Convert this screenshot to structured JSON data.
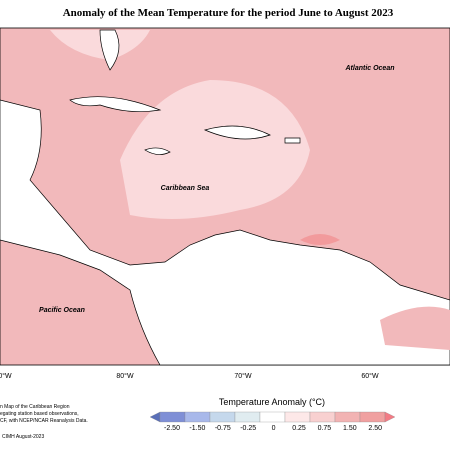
{
  "title": "Anomaly of the Mean Temperature for the period June to August 2023",
  "map": {
    "labels": [
      "Atlantic Ocean",
      "Caribbean Sea",
      "Pacific Ocean"
    ],
    "longitudes": [
      "0°W",
      "80°W",
      "70°W",
      "60°W"
    ]
  },
  "legend": {
    "title": "Temperature Anomaly (°C)",
    "ticks": [
      "-2.50",
      "-1.50",
      "-0.75",
      "-0.25",
      "0",
      "0.25",
      "0.75",
      "1.50",
      "2.50"
    ]
  },
  "footnote": {
    "lines": [
      "n Map of the Caribbean Region",
      "egating station based observations,",
      "CF, with NCEP/NCAR Reanalysis Data."
    ],
    "credit": "CIMH August-2023"
  }
}
